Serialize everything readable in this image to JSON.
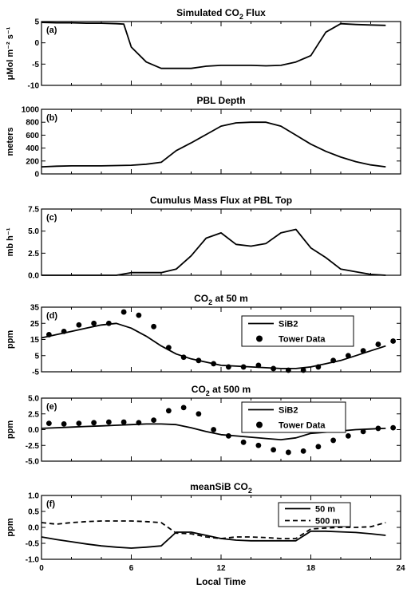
{
  "xaxis": {
    "label": "Local Time",
    "range": [
      0,
      24
    ],
    "ticks": [
      0,
      6,
      12,
      18,
      24
    ]
  },
  "chart_data": [
    {
      "type": "line",
      "panel": "(a)",
      "title_main": "Simulated CO",
      "title_sub": "2",
      "title_after": " Flux",
      "ylabel": "μMol m⁻² s⁻¹",
      "ylim": [
        -10,
        5
      ],
      "yticks": [
        -10,
        -5,
        0,
        5
      ],
      "ytick_labels": [
        "-10",
        "-5",
        "0",
        "5"
      ],
      "legend": [],
      "series": [
        {
          "style": "solid",
          "x": [
            0,
            1,
            2,
            3,
            4,
            5,
            5.5,
            6,
            7,
            8,
            9,
            10,
            11,
            12,
            13,
            14,
            15,
            16,
            17,
            18,
            19,
            20,
            21,
            22,
            23
          ],
          "y": [
            4.8,
            4.7,
            4.7,
            4.6,
            4.6,
            4.5,
            4.4,
            -1,
            -4.5,
            -6,
            -6,
            -6,
            -5.5,
            -5.3,
            -5.3,
            -5.3,
            -5.4,
            -5.3,
            -4.5,
            -3,
            2.5,
            4.5,
            4.3,
            4.2,
            4.1
          ]
        }
      ]
    },
    {
      "type": "line",
      "panel": "(b)",
      "title_main": "PBL Depth",
      "title_sub": "",
      "title_after": "",
      "ylabel": "meters",
      "ylim": [
        0,
        1000
      ],
      "yticks": [
        0,
        200,
        400,
        600,
        800,
        1000
      ],
      "ytick_labels": [
        "0",
        "200",
        "400",
        "600",
        "800",
        "1000"
      ],
      "legend": [],
      "series": [
        {
          "style": "solid",
          "x": [
            0,
            1,
            2,
            3,
            4,
            5,
            6,
            7,
            8,
            9,
            10,
            11,
            12,
            13,
            14,
            15,
            16,
            17,
            18,
            19,
            20,
            21,
            22,
            23
          ],
          "y": [
            110,
            120,
            125,
            125,
            125,
            130,
            135,
            150,
            180,
            360,
            480,
            610,
            740,
            790,
            800,
            800,
            740,
            600,
            460,
            350,
            260,
            190,
            140,
            110
          ]
        }
      ]
    },
    {
      "type": "line",
      "panel": "(c)",
      "title_main": "Cumulus Mass Flux at PBL Top",
      "title_sub": "",
      "title_after": "",
      "ylabel": "mb h⁻¹",
      "ylim": [
        0,
        7.5
      ],
      "yticks": [
        0,
        2.5,
        5,
        7.5
      ],
      "ytick_labels": [
        "0.0",
        "2.5",
        "5.0",
        "7.5"
      ],
      "legend": [],
      "series": [
        {
          "style": "solid",
          "x": [
            0,
            1,
            2,
            3,
            4,
            5,
            6,
            7,
            8,
            9,
            10,
            11,
            12,
            13,
            14,
            15,
            16,
            17,
            18,
            19,
            20,
            21,
            22,
            23
          ],
          "y": [
            0,
            0,
            0,
            0,
            0,
            0,
            0.3,
            0.3,
            0.3,
            0.7,
            2.2,
            4.2,
            4.8,
            3.5,
            3.3,
            3.6,
            4.8,
            5.2,
            3.1,
            2,
            0.7,
            0.4,
            0.1,
            0
          ]
        }
      ]
    },
    {
      "type": "line",
      "panel": "(d)",
      "title_main": "CO",
      "title_sub": "2",
      "title_after": " at 50 m",
      "ylabel": "ppm",
      "ylim": [
        -5,
        35
      ],
      "yticks": [
        -5,
        5,
        15,
        25,
        35
      ],
      "ytick_labels": [
        "-5",
        "5",
        "15",
        "25",
        "35"
      ],
      "legend": [
        "SiB2",
        "Tower Data"
      ],
      "series": [
        {
          "name": "SiB2",
          "style": "solid",
          "x": [
            0,
            1,
            2,
            3,
            4,
            5,
            6,
            7,
            8,
            9,
            10,
            11,
            12,
            13,
            14,
            15,
            16,
            17,
            18,
            19,
            20,
            21,
            22,
            23
          ],
          "y": [
            16,
            18,
            20,
            22,
            24,
            25,
            22,
            17,
            11,
            6,
            3,
            1,
            -1,
            -1.5,
            -2,
            -2.5,
            -3,
            -3,
            -2,
            0,
            2,
            5,
            8,
            11
          ]
        },
        {
          "name": "Tower Data",
          "style": "dots",
          "x": [
            0.5,
            1.5,
            2.5,
            3.5,
            4.5,
            5.5,
            6.5,
            7.5,
            8.5,
            9.5,
            10.5,
            11.5,
            12.5,
            13.5,
            14.5,
            15.5,
            16.5,
            17.5,
            18.5,
            19.5,
            20.5,
            21.5,
            22.5,
            23.5
          ],
          "y": [
            18,
            20,
            24,
            25,
            25,
            32,
            30,
            23,
            10,
            4,
            2,
            0,
            -2,
            -2,
            -1,
            -3,
            -4,
            -4,
            -2,
            2,
            5,
            8,
            12,
            14
          ]
        }
      ]
    },
    {
      "type": "line",
      "panel": "(e)",
      "title_main": "CO",
      "title_sub": "2",
      "title_after": " at 500 m",
      "ylabel": "ppm",
      "ylim": [
        -5,
        5
      ],
      "yticks": [
        -5,
        -2.5,
        0,
        2.5,
        5
      ],
      "ytick_labels": [
        "-5.0",
        "-2.5",
        "0.0",
        "2.5",
        "5.0"
      ],
      "legend": [
        "SiB2",
        "Tower Data"
      ],
      "series": [
        {
          "name": "SiB2",
          "style": "solid",
          "x": [
            0,
            1,
            2,
            3,
            4,
            5,
            6,
            7,
            8,
            9,
            10,
            11,
            12,
            13,
            14,
            15,
            16,
            17,
            18,
            19,
            20,
            21,
            22,
            23
          ],
          "y": [
            0.2,
            0.3,
            0.4,
            0.5,
            0.6,
            0.7,
            0.8,
            0.9,
            0.9,
            0.8,
            0.3,
            -0.3,
            -0.8,
            -1.0,
            -1.2,
            -1.4,
            -1.6,
            -1.3,
            -0.6,
            -0.4,
            -0.2,
            0.0,
            0.1,
            0.2
          ]
        },
        {
          "name": "Tower Data",
          "style": "dots",
          "x": [
            0.5,
            1.5,
            2.5,
            3.5,
            4.5,
            5.5,
            6.5,
            7.5,
            8.5,
            9.5,
            10.5,
            11.5,
            12.5,
            13.5,
            14.5,
            15.5,
            16.5,
            17.5,
            18.5,
            19.5,
            20.5,
            21.5,
            22.5,
            23.5
          ],
          "y": [
            1.0,
            0.9,
            1.0,
            1.1,
            1.2,
            1.2,
            1.1,
            1.5,
            3.0,
            3.5,
            2.5,
            0.0,
            -1.0,
            -2.0,
            -2.5,
            -3.2,
            -3.6,
            -3.4,
            -2.7,
            -1.7,
            -1.0,
            -0.3,
            0.2,
            0.3
          ]
        }
      ]
    },
    {
      "type": "line",
      "panel": "(f)",
      "title_main": "meanSiB CO",
      "title_sub": "2",
      "title_after": "",
      "ylabel": "ppm",
      "ylim": [
        -1,
        1
      ],
      "yticks": [
        -1,
        -0.5,
        0,
        0.5,
        1
      ],
      "ytick_labels": [
        "-1.0",
        "-0.5",
        "0.0",
        "0.5",
        "1.0"
      ],
      "legend": [
        "50 m",
        "500 m"
      ],
      "series": [
        {
          "name": "50 m",
          "style": "solid",
          "x": [
            0,
            1,
            2,
            3,
            4,
            5,
            6,
            7,
            8,
            9,
            10,
            11,
            12,
            13,
            14,
            15,
            16,
            17,
            18,
            19,
            20,
            21,
            22,
            23
          ],
          "y": [
            -0.3,
            -0.38,
            -0.45,
            -0.52,
            -0.58,
            -0.62,
            -0.65,
            -0.62,
            -0.58,
            -0.15,
            -0.15,
            -0.25,
            -0.35,
            -0.4,
            -0.42,
            -0.42,
            -0.42,
            -0.42,
            -0.12,
            -0.12,
            -0.14,
            -0.16,
            -0.2,
            -0.25
          ]
        },
        {
          "name": "500 m",
          "style": "dashed",
          "x": [
            0,
            1,
            2,
            3,
            4,
            5,
            6,
            7,
            8,
            9,
            10,
            11,
            12,
            13,
            14,
            15,
            16,
            17,
            18,
            19,
            20,
            21,
            22,
            23
          ],
          "y": [
            0.15,
            0.1,
            0.15,
            0.18,
            0.2,
            0.2,
            0.2,
            0.18,
            0.15,
            -0.18,
            -0.2,
            -0.3,
            -0.35,
            -0.3,
            -0.3,
            -0.32,
            -0.35,
            -0.35,
            -0.05,
            -0.02,
            0.0,
            0.0,
            0.02,
            0.15
          ]
        }
      ]
    }
  ]
}
